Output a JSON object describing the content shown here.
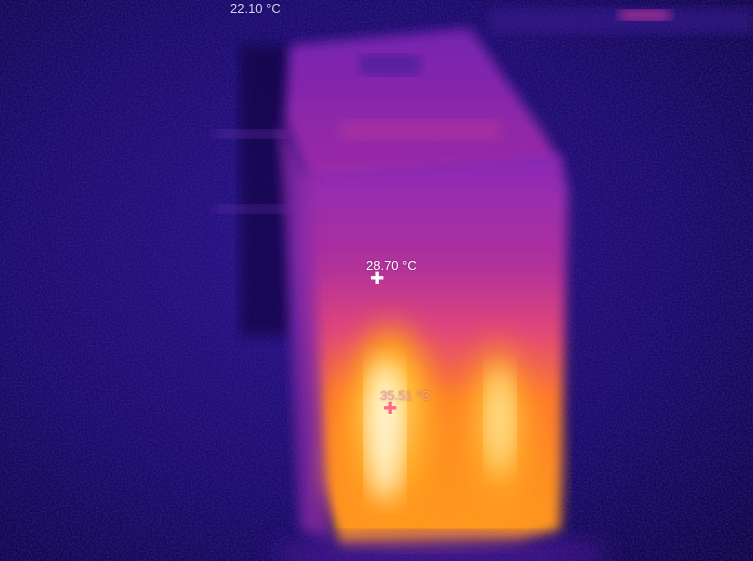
{
  "measurements": {
    "min_label": "22.10 °C",
    "center_label": "28.70 °C",
    "max_label": "35.51 °C"
  },
  "colors": {
    "min_text": "#cfd6ff",
    "center_text": "#ffffff",
    "max_text": "#ff9aa8",
    "center_marker": "#ffffff",
    "max_marker": "#ff6a86",
    "palette": [
      "#0b0733",
      "#22117a",
      "#6a18b0",
      "#c4289c",
      "#ff5a2a",
      "#ffb11a",
      "#fff6b3"
    ]
  },
  "icons": {
    "center_marker": "crosshair-plus-icon",
    "max_marker": "crosshair-plus-icon"
  }
}
